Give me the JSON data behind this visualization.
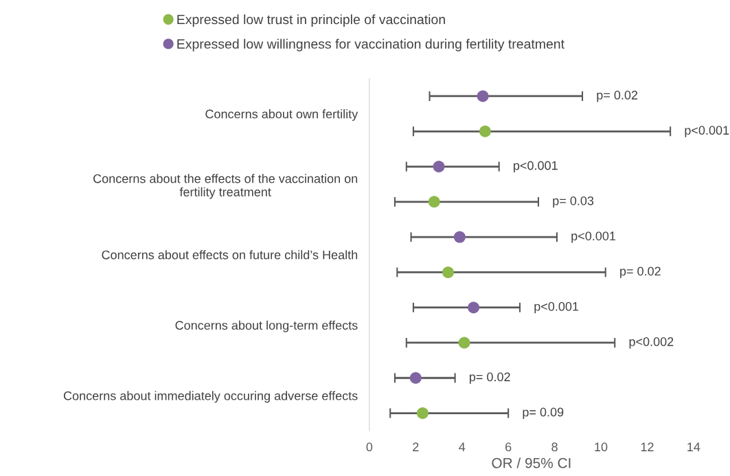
{
  "chart_data": {
    "type": "scatter",
    "orientation": "horizontal",
    "xlabel": "OR / 95% CI",
    "categories": [
      "Concerns about own fertility",
      "Concerns about the effects of the vaccination on\nfertility treatment",
      "Concerns about effects on future child’s Health",
      "Concerns about long-term effects",
      "Concerns about immediately occuring adverse effects"
    ],
    "series": [
      {
        "name": "Expressed low willingness for vaccination during fertility treatment",
        "color": "#8064a2",
        "values": [
          4.9,
          3.0,
          3.9,
          4.5,
          2.0
        ],
        "errors": [
          [
            2.6,
            9.2
          ],
          [
            1.6,
            5.6
          ],
          [
            1.8,
            8.1
          ],
          [
            1.9,
            6.5
          ],
          [
            1.1,
            3.7
          ]
        ]
      },
      {
        "name": "Expressed low trust in principle of vaccination",
        "color": "#8db84a",
        "values": [
          5.0,
          2.8,
          3.4,
          4.1,
          2.3
        ],
        "errors": [
          [
            1.9,
            13.0
          ],
          [
            1.1,
            7.3
          ],
          [
            1.2,
            10.2
          ],
          [
            1.6,
            10.6
          ],
          [
            0.9,
            6.0
          ]
        ]
      }
    ],
    "annotations": [
      {
        "text": "p= 0.02",
        "x": 9.2
      },
      {
        "text": "p<0.001",
        "x": 13.0
      },
      {
        "text": "p<0.001",
        "x": 5.6
      },
      {
        "text": "p= 0.03",
        "x": 7.3
      },
      {
        "text": "p<0.001",
        "x": 8.1
      },
      {
        "text": "p= 0.02",
        "x": 10.2
      },
      {
        "text": "p<0.001",
        "x": 6.5
      },
      {
        "text": "p<0.002",
        "x": 10.6
      },
      {
        "text": "p= 0.02",
        "x": 3.7
      },
      {
        "text": "p= 0.09",
        "x": 6.0
      }
    ],
    "xlim": [
      0,
      14
    ],
    "xticks": [
      0,
      2,
      4,
      6,
      8,
      10,
      12,
      14
    ],
    "marker": "circle",
    "legend": "top",
    "grid": false
  }
}
